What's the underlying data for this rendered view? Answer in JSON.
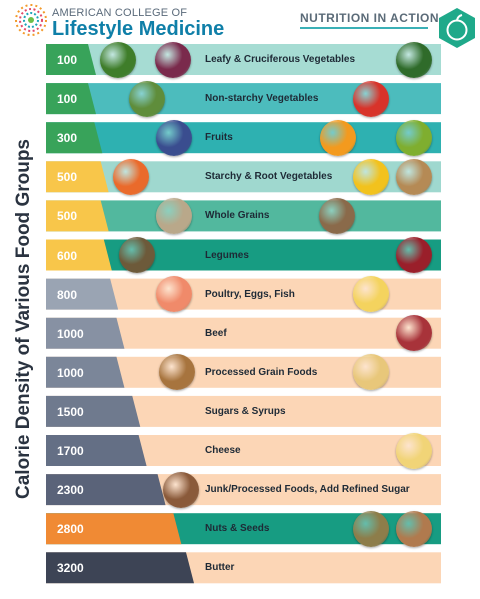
{
  "header": {
    "logo_top": "AMERICAN COLLEGE OF",
    "logo_main": "Lifestyle Medicine",
    "nutrition_label": "NUTRITION IN ACTION"
  },
  "chart_data": {
    "type": "bar",
    "ylabel": "Calorie Density of Various Food Groups",
    "categories": [
      "Leafy & Cruciferous Vegetables",
      "Non-starchy Vegetables",
      "Fruits",
      "Starchy & Root Vegetables",
      "Whole Grains",
      "Legumes",
      "Poultry, Eggs, Fish",
      "Beef",
      "Processed Grain Foods",
      "Sugars & Syrups",
      "Cheese",
      "Junk/Processed Foods, Add Refined Sugar",
      "Nuts & Seeds",
      "Butter"
    ],
    "values": [
      100,
      100,
      300,
      500,
      500,
      600,
      800,
      1000,
      1000,
      1500,
      1700,
      2300,
      2800,
      3200
    ],
    "value_labels": [
      "100",
      "100",
      "300",
      "500",
      "500",
      "600",
      "800",
      "1000",
      "1000",
      "1500",
      "1700",
      "2300",
      "2800",
      "3200"
    ],
    "marker_colors": [
      "#38a35a",
      "#38a35a",
      "#38a35a",
      "#f8c64a",
      "#f8c64a",
      "#f8c64a",
      "#9aa4b3",
      "#8791a3",
      "#7b8699",
      "#6f7a8e",
      "#646f85",
      "#5a6379",
      "#f08a34",
      "#3d4455"
    ],
    "band_colors": [
      "#a6dcd3",
      "#4cbcbd",
      "#2eb1b1",
      "#9fd8cf",
      "#52b89e",
      "#179c82",
      "#fcd6b6",
      "#fcd6b6",
      "#fcd6b6",
      "#fcd6b6",
      "#fcd6b6",
      "#fcd6b6",
      "#179c82",
      "#fcd6b6"
    ]
  },
  "food_images": [
    [
      "broccoli",
      "red-cabbage",
      "kale"
    ],
    [
      "cucumber",
      "tomato"
    ],
    [
      "blueberries",
      "orange-slice",
      "kiwi"
    ],
    [
      "carrots",
      "corn",
      "potatoes"
    ],
    [
      "wild-rice",
      "quinoa"
    ],
    [
      "lentils",
      "kidney-beans"
    ],
    [
      "salmon",
      "fried-eggs"
    ],
    [
      "steak"
    ],
    [
      "shredded-wheat",
      "pasta"
    ],
    [],
    [
      "swiss-cheese"
    ],
    [
      "junk-food"
    ],
    [
      "mixed-seeds",
      "almonds"
    ],
    []
  ]
}
